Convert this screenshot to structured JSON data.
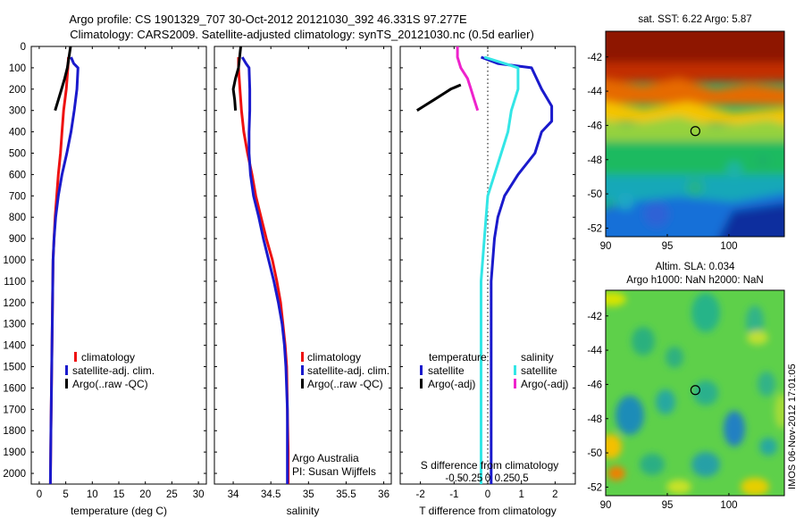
{
  "header": {
    "title_line1": "Argo profile: CS 1901329_707 30-Oct-2012 20121030_392 46.331S 97.277E",
    "title_line2": "Climatology: CARS2009. Satellite-adjusted climatology: synTS_20121030.nc (0.5d earlier)"
  },
  "depth_ticks": [
    0,
    100,
    200,
    300,
    400,
    500,
    600,
    700,
    800,
    900,
    1000,
    1100,
    1200,
    1300,
    1400,
    1500,
    1600,
    1700,
    1800,
    1900,
    2000
  ],
  "colors": {
    "climatology": "#ee1111",
    "satellite": "#1a1acc",
    "argo": "#000000",
    "sat_salinity": "#33e6e6",
    "argo_salinity": "#ee22cc"
  },
  "chart_data": [
    {
      "type": "line",
      "id": "temperature",
      "xlabel": "temperature (deg C)",
      "xlim": [
        -1.5,
        31.5
      ],
      "ylim": [
        0,
        2050
      ],
      "y_reversed": true,
      "x_ticks": [
        0,
        5,
        10,
        15,
        20,
        25,
        30
      ],
      "legend": [
        "climatology",
        "satellite-adj. clim.",
        "Argo(..raw -QC)"
      ],
      "series": [
        {
          "name": "climatology",
          "color": "#ee1111",
          "points": [
            [
              5.5,
              50
            ],
            [
              5.4,
              100
            ],
            [
              5.1,
              200
            ],
            [
              4.6,
              300
            ],
            [
              4.3,
              400
            ],
            [
              4.0,
              500
            ],
            [
              3.6,
              600
            ],
            [
              3.3,
              700
            ],
            [
              3.0,
              800
            ],
            [
              2.8,
              900
            ],
            [
              2.6,
              1000
            ],
            [
              2.5,
              1200
            ],
            [
              2.4,
              1400
            ],
            [
              2.3,
              1600
            ],
            [
              2.2,
              1800
            ],
            [
              2.1,
              2050
            ]
          ]
        },
        {
          "name": "satellite-adj. clim.",
          "color": "#1a1acc",
          "points": [
            [
              6.0,
              50
            ],
            [
              6.5,
              80
            ],
            [
              7.3,
              100
            ],
            [
              7.1,
              200
            ],
            [
              6.6,
              300
            ],
            [
              6.0,
              400
            ],
            [
              5.2,
              500
            ],
            [
              4.3,
              600
            ],
            [
              3.6,
              700
            ],
            [
              3.1,
              800
            ],
            [
              2.8,
              900
            ],
            [
              2.6,
              1000
            ],
            [
              2.5,
              1200
            ],
            [
              2.4,
              1400
            ],
            [
              2.3,
              1600
            ],
            [
              2.2,
              1800
            ],
            [
              2.1,
              2050
            ]
          ]
        },
        {
          "name": "Argo(..raw -QC)",
          "color": "#000000",
          "points": [
            [
              5.9,
              0
            ],
            [
              5.6,
              50
            ],
            [
              5.3,
              100
            ],
            [
              4.8,
              150
            ],
            [
              4.2,
              200
            ],
            [
              3.6,
              250
            ],
            [
              3.0,
              300
            ]
          ]
        }
      ]
    },
    {
      "type": "line",
      "id": "salinity",
      "xlabel": "salinity",
      "xlim": [
        33.75,
        36.1
      ],
      "ylim": [
        0,
        2050
      ],
      "y_reversed": true,
      "x_ticks": [
        34,
        34.5,
        35,
        35.5,
        36
      ],
      "legend": [
        "climatology",
        "satellite-adj. clim.",
        "Argo(..raw -QC)"
      ],
      "annotations": [
        "Argo Australia",
        "PI: Susan Wijffels"
      ],
      "series": [
        {
          "name": "climatology",
          "color": "#ee1111",
          "points": [
            [
              34.07,
              50
            ],
            [
              34.07,
              100
            ],
            [
              34.09,
              200
            ],
            [
              34.11,
              300
            ],
            [
              34.14,
              400
            ],
            [
              34.19,
              500
            ],
            [
              34.25,
              600
            ],
            [
              34.3,
              700
            ],
            [
              34.37,
              800
            ],
            [
              34.44,
              900
            ],
            [
              34.52,
              1000
            ],
            [
              34.58,
              1100
            ],
            [
              34.63,
              1200
            ],
            [
              34.66,
              1300
            ],
            [
              34.69,
              1400
            ],
            [
              34.71,
              1500
            ],
            [
              34.72,
              1700
            ],
            [
              34.73,
              1900
            ],
            [
              34.73,
              2050
            ]
          ]
        },
        {
          "name": "satellite-adj. clim.",
          "color": "#1a1acc",
          "points": [
            [
              34.12,
              50
            ],
            [
              34.17,
              80
            ],
            [
              34.21,
              100
            ],
            [
              34.22,
              200
            ],
            [
              34.22,
              300
            ],
            [
              34.21,
              400
            ],
            [
              34.21,
              500
            ],
            [
              34.23,
              600
            ],
            [
              34.27,
              700
            ],
            [
              34.34,
              800
            ],
            [
              34.4,
              900
            ],
            [
              34.47,
              1000
            ],
            [
              34.54,
              1100
            ],
            [
              34.6,
              1200
            ],
            [
              34.65,
              1300
            ],
            [
              34.68,
              1400
            ],
            [
              34.7,
              1500
            ],
            [
              34.72,
              1700
            ],
            [
              34.72,
              1900
            ],
            [
              34.72,
              2050
            ]
          ]
        },
        {
          "name": "Argo(..raw -QC)",
          "color": "#000000",
          "points": [
            [
              34.1,
              0
            ],
            [
              34.07,
              100
            ],
            [
              34.03,
              150
            ],
            [
              34.0,
              200
            ],
            [
              34.02,
              250
            ],
            [
              34.03,
              300
            ]
          ]
        }
      ]
    },
    {
      "type": "line",
      "id": "difference",
      "xlabel": "T difference from climatology",
      "xlabel_top": "S difference from climatology",
      "xlim": [
        -2.6,
        2.6
      ],
      "ylim": [
        0,
        2050
      ],
      "y_reversed": true,
      "x_ticks": [
        -2,
        -1,
        0,
        1,
        2
      ],
      "x_ticks_s": [
        "-0.5",
        "-0.25",
        "0",
        "0.25",
        "0.5"
      ],
      "legend_headers": [
        "temperature",
        "salinity"
      ],
      "legend": [
        "satellite",
        "Argo(-adj)",
        "satellite",
        "Argo(-adj)"
      ],
      "series": [
        {
          "name": "satellite",
          "quantity": "temperature",
          "color": "#1a1acc",
          "points": [
            [
              -0.2,
              50
            ],
            [
              0.3,
              80
            ],
            [
              1.3,
              100
            ],
            [
              1.6,
              200
            ],
            [
              1.9,
              280
            ],
            [
              1.9,
              350
            ],
            [
              1.6,
              400
            ],
            [
              1.4,
              500
            ],
            [
              0.9,
              600
            ],
            [
              0.5,
              700
            ],
            [
              0.3,
              800
            ],
            [
              0.2,
              900
            ],
            [
              0.1,
              1100
            ],
            [
              0.1,
              1500
            ],
            [
              0.1,
              2050
            ]
          ]
        },
        {
          "name": "satellite",
          "quantity": "salinity",
          "color": "#33e6e6",
          "points": [
            [
              -0.1,
              50
            ],
            [
              0.5,
              80
            ],
            [
              0.9,
              100
            ],
            [
              0.9,
              200
            ],
            [
              0.7,
              300
            ],
            [
              0.6,
              400
            ],
            [
              0.4,
              500
            ],
            [
              0.0,
              700
            ],
            [
              -0.1,
              900
            ],
            [
              -0.2,
              1100
            ],
            [
              -0.2,
              1500
            ],
            [
              -0.2,
              2050
            ]
          ]
        },
        {
          "name": "Argo(-adj)",
          "quantity": "temperature",
          "color": "#000000",
          "points": [
            [
              -0.8,
              180
            ],
            [
              -1.1,
              200
            ],
            [
              -1.3,
              220
            ],
            [
              -1.6,
              250
            ],
            [
              -1.9,
              280
            ],
            [
              -2.1,
              300
            ]
          ]
        },
        {
          "name": "Argo(-adj)",
          "quantity": "salinity",
          "color": "#ee22cc",
          "points": [
            [
              -0.9,
              0
            ],
            [
              -0.9,
              50
            ],
            [
              -0.8,
              100
            ],
            [
              -0.6,
              150
            ],
            [
              -0.5,
              200
            ],
            [
              -0.4,
              250
            ],
            [
              -0.3,
              300
            ]
          ]
        }
      ]
    },
    {
      "type": "heatmap",
      "id": "sst_map",
      "title": "sat. SST: 6.22 Argo: 5.87",
      "xlim": [
        90,
        104.5
      ],
      "ylim": [
        -52.5,
        -40.5
      ],
      "x_ticks": [
        90,
        95,
        100
      ],
      "y_ticks": [
        -42,
        -44,
        -46,
        -48,
        -50,
        -52
      ],
      "marker": [
        97.277,
        -46.331
      ]
    },
    {
      "type": "heatmap",
      "id": "sla_map",
      "title_line1": "Altim. SLA: 0.034",
      "title_line2": "Argo h1000: NaN h2000: NaN",
      "xlim": [
        90,
        104.5
      ],
      "ylim": [
        -52.5,
        -40.5
      ],
      "x_ticks": [
        90,
        95,
        100
      ],
      "y_ticks": [
        -42,
        -44,
        -46,
        -48,
        -50,
        -52
      ],
      "marker": [
        97.277,
        -46.331
      ]
    }
  ],
  "side_label": "IMOS 06-Nov-2012 17:01:05"
}
